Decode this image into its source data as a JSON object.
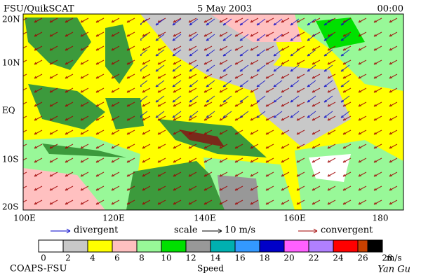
{
  "header": {
    "title": "FSU/QuikSCAT",
    "date": "5 May 2003",
    "time": "00:00"
  },
  "map": {
    "lat_labels": [
      "20N",
      "10N",
      "EQ",
      "10S",
      "20S"
    ],
    "lon_labels": [
      "100E",
      "120E",
      "140E",
      "160E",
      "180"
    ]
  },
  "legend": {
    "divergent": "divergent",
    "scale": "scale",
    "scale_value": "10 m/s",
    "convergent": "convergent",
    "divergent_color": "#0000c8",
    "convergent_color": "#a00000"
  },
  "colorbar": {
    "colors": [
      "#ffffff",
      "#c8c8c8",
      "#ffff00",
      "#ffc0c0",
      "#98f898",
      "#00e000",
      "#989898",
      "#00b0b0",
      "#3399ff",
      "#0000c8",
      "#ff60ff",
      "#b080ff",
      "#ff0000",
      "#c84000",
      "#000000"
    ],
    "ticks": [
      0,
      2,
      4,
      6,
      8,
      10,
      12,
      14,
      16,
      18,
      20,
      22,
      24,
      26,
      28
    ],
    "unit": "m/s",
    "label": "Speed"
  },
  "footer": {
    "source": "COAPS-FSU",
    "author": "Yan Gu"
  }
}
